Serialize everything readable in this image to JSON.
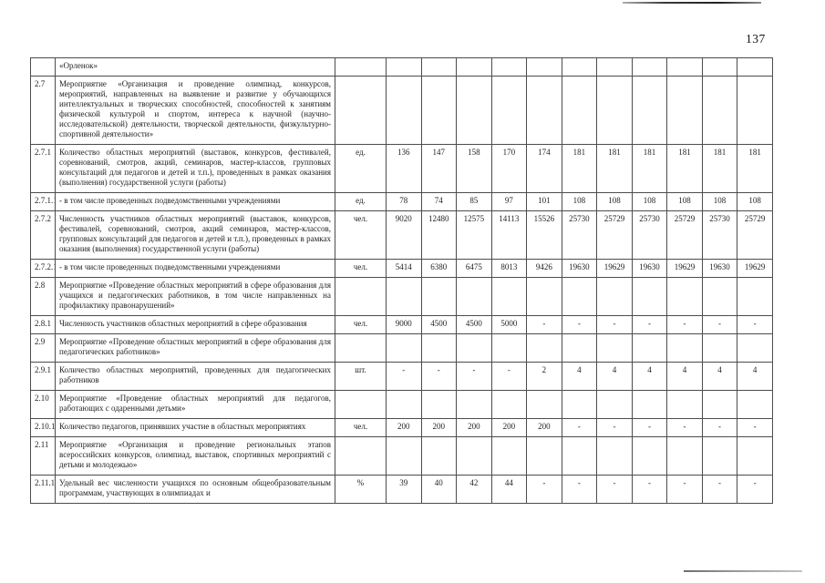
{
  "page": {
    "number": "137"
  },
  "table": {
    "rows": [
      {
        "num": "",
        "desc": "«Орленок»",
        "unit": "",
        "values": [
          "",
          "",
          "",
          "",
          "",
          "",
          "",
          "",
          "",
          "",
          ""
        ]
      },
      {
        "num": "2.7",
        "desc": "Мероприятие «Организация и проведение олимпиад, конкурсов, мероприятий, направленных на выявление и развитие у обучающихся интеллектуальных и творческих способностей, способностей к занятиям физической культурой и спортом, интереса к научной (научно-исследовательской) деятельности, творческой деятельности, физкультурно-спортивной деятельности»",
        "unit": "",
        "values": [
          "",
          "",
          "",
          "",
          "",
          "",
          "",
          "",
          "",
          "",
          ""
        ]
      },
      {
        "num": "2.7.1",
        "desc": "Количество областных мероприятий (выставок, конкурсов, фестивалей, соревнований, смотров, акций, семинаров, мастер-классов, групповых консультаций для педагогов и детей и т.п.), проведенных в рамках оказания (выполнения) государственной услуги (работы)",
        "unit": "ед.",
        "values": [
          "136",
          "147",
          "158",
          "170",
          "174",
          "181",
          "181",
          "181",
          "181",
          "181",
          "181"
        ]
      },
      {
        "num": "2.7.1.1",
        "desc": "- в том числе проведенных подведомственными учреждениями",
        "unit": "ед.",
        "values": [
          "78",
          "74",
          "85",
          "97",
          "101",
          "108",
          "108",
          "108",
          "108",
          "108",
          "108"
        ]
      },
      {
        "num": "2.7.2",
        "desc": "Численность участников областных мероприятий (выставок, конкурсов, фестивалей, соревнований, смотров, акций семинаров, мастер-классов, групповых консультаций для педагогов и детей и т.п.), проведенных в рамках оказания (выполнения) государственной услуги (работы)",
        "unit": "чел.",
        "values": [
          "9020",
          "12480",
          "12575",
          "14113",
          "15526",
          "25730",
          "25729",
          "25730",
          "25729",
          "25730",
          "25729"
        ]
      },
      {
        "num": "2.7.2.1",
        "desc": "- в том числе проведенных подведомственными учреждениями",
        "unit": "чел.",
        "values": [
          "5414",
          "6380",
          "6475",
          "8013",
          "9426",
          "19630",
          "19629",
          "19630",
          "19629",
          "19630",
          "19629"
        ]
      },
      {
        "num": "2.8",
        "desc": "Мероприятие «Проведение областных мероприятий в сфере образования для учащихся и педагогических работников, в том числе направленных на профилактику правонарушений»",
        "unit": "",
        "values": [
          "",
          "",
          "",
          "",
          "",
          "",
          "",
          "",
          "",
          "",
          ""
        ]
      },
      {
        "num": "2.8.1",
        "desc": "Численность участников областных мероприятий в сфере образования",
        "unit": "чел.",
        "values": [
          "9000",
          "4500",
          "4500",
          "5000",
          "-",
          "-",
          "-",
          "-",
          "-",
          "-",
          "-"
        ]
      },
      {
        "num": "2.9",
        "desc": "Мероприятие «Проведение областных мероприятий в сфере образования для педагогических работников»",
        "unit": "",
        "values": [
          "",
          "",
          "",
          "",
          "",
          "",
          "",
          "",
          "",
          "",
          ""
        ]
      },
      {
        "num": "2.9.1",
        "desc": "Количество областных мероприятий, проведенных для педагогических работников",
        "unit": "шт.",
        "values": [
          "-",
          "-",
          "-",
          "-",
          "2",
          "4",
          "4",
          "4",
          "4",
          "4",
          "4"
        ]
      },
      {
        "num": "2.10",
        "desc": "Мероприятие «Проведение областных мероприятий для педагогов, работающих с одаренными детьми»",
        "unit": "",
        "values": [
          "",
          "",
          "",
          "",
          "",
          "",
          "",
          "",
          "",
          "",
          ""
        ]
      },
      {
        "num": "2.10.1",
        "desc": "Количество педагогов, принявших участие в областных мероприятиях",
        "unit": "чел.",
        "values": [
          "200",
          "200",
          "200",
          "200",
          "200",
          "-",
          "-",
          "-",
          "-",
          "-",
          "-"
        ]
      },
      {
        "num": "2.11",
        "desc": "Мероприятие «Организация и проведение региональных этапов всероссийских конкурсов, олимпиад, выставок, спортивных мероприятий с детьми и молодежью»",
        "unit": "",
        "values": [
          "",
          "",
          "",
          "",
          "",
          "",
          "",
          "",
          "",
          "",
          ""
        ]
      },
      {
        "num": "2.11.1",
        "desc": "Удельный вес численности учащихся по основным общеобразовательным программам, участвующих в олимпиадах и",
        "unit": "%",
        "values": [
          "39",
          "40",
          "42",
          "44",
          "-",
          "-",
          "-",
          "-",
          "-",
          "-",
          "-"
        ]
      }
    ]
  }
}
